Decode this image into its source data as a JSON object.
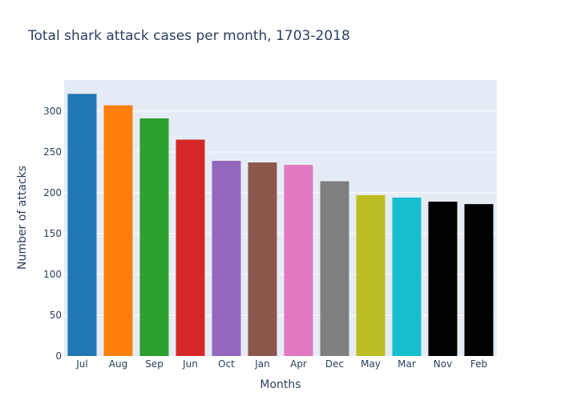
{
  "chart_data": {
    "type": "bar",
    "title": "Total shark attack cases per month, 1703-2018",
    "xlabel": "Months",
    "ylabel": "Number of attacks",
    "categories": [
      "Jul",
      "Aug",
      "Sep",
      "Jun",
      "Oct",
      "Jan",
      "Apr",
      "Dec",
      "May",
      "Mar",
      "Nov",
      "Feb"
    ],
    "values": [
      321,
      307,
      291,
      265,
      239,
      237,
      234,
      214,
      197,
      194,
      189,
      186
    ],
    "colors": [
      "#1f77b4",
      "#ff7f0e",
      "#2ca02c",
      "#d62728",
      "#9467bd",
      "#8c564b",
      "#e377c2",
      "#7f7f7f",
      "#bcbd22",
      "#17becf",
      "#000000",
      "#000000"
    ],
    "ylim": [
      0,
      338
    ],
    "yticks": [
      0,
      50,
      100,
      150,
      200,
      250,
      300
    ],
    "grid": true,
    "plot_background": "#e5ecf6"
  }
}
